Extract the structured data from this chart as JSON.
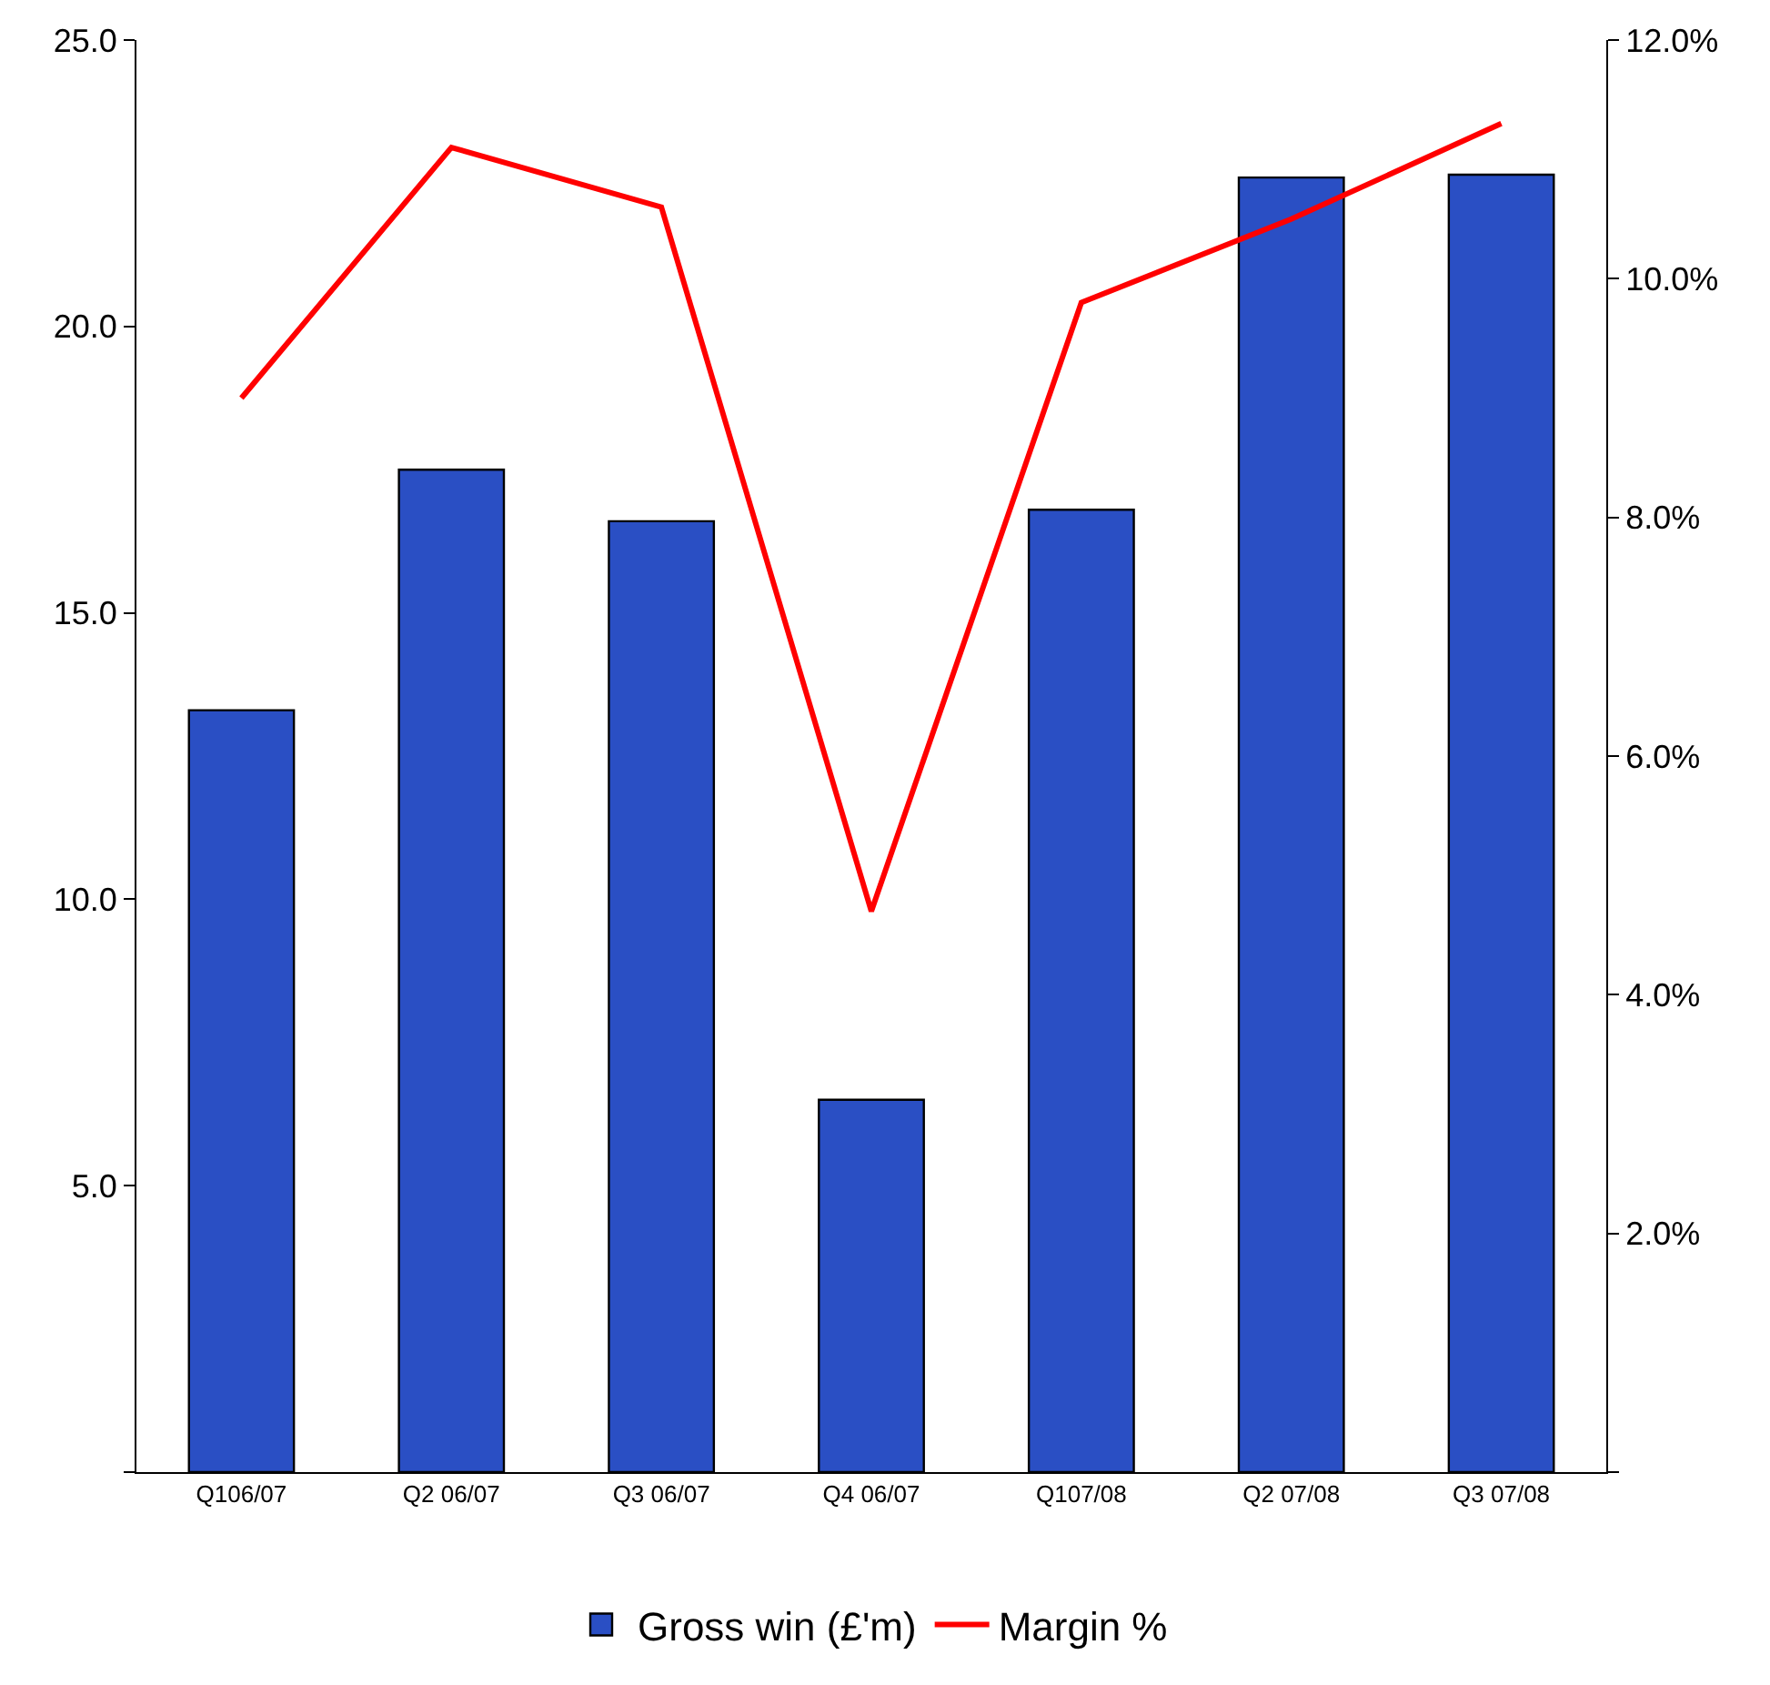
{
  "chart_data": {
    "type": "bar",
    "categories": [
      "Q106/07",
      "Q2 06/07",
      "Q3 06/07",
      "Q4 06/07",
      "Q107/08",
      "Q2 07/08",
      "Q3 07/08"
    ],
    "series": [
      {
        "name": "Gross win (£'m)",
        "color": "#2a4fc4",
        "values": [
          13.3,
          17.5,
          16.6,
          6.5,
          16.8,
          22.6,
          22.65
        ]
      },
      {
        "name": "Margin %",
        "type": "line",
        "axis": "y2",
        "color": "#ff0000",
        "values": [
          9.0,
          11.1,
          10.6,
          4.7,
          9.8,
          10.5,
          11.3
        ]
      }
    ],
    "ylim": [
      0,
      25
    ],
    "yticks": [
      {
        "value": 0,
        "label": null
      },
      {
        "value": 5,
        "label": "5.0"
      },
      {
        "value": 10,
        "label": "10.0"
      },
      {
        "value": 15,
        "label": "15.0"
      },
      {
        "value": 20,
        "label": "20.0"
      },
      {
        "value": 25,
        "label": "25.0"
      }
    ],
    "y2lim": [
      0,
      12
    ],
    "y2ticks": [
      {
        "value": 0,
        "label": null
      },
      {
        "value": 2,
        "label": "2.0%"
      },
      {
        "value": 4,
        "label": "4.0%"
      },
      {
        "value": 6,
        "label": "6.0%"
      },
      {
        "value": 8,
        "label": "8.0%"
      },
      {
        "value": 10,
        "label": "10.0%"
      },
      {
        "value": 12,
        "label": "12.0%"
      }
    ],
    "legend": "bottom",
    "marker": "none",
    "line_style": "solid"
  }
}
